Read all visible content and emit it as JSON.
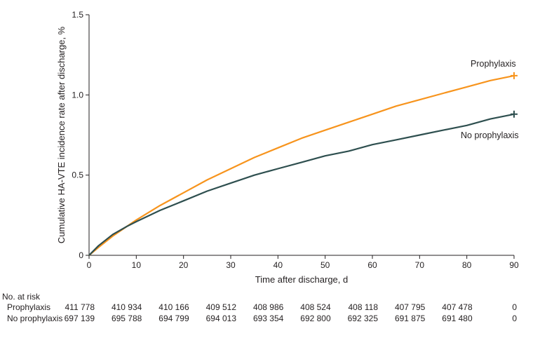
{
  "chart_data": {
    "type": "line",
    "title": "",
    "xlabel": "Time after discharge, d",
    "ylabel": "Cumulative HA-VTE incidence rate after discharge, %",
    "xlim": [
      0,
      90
    ],
    "ylim": [
      0,
      1.5
    ],
    "xticks": [
      0,
      10,
      20,
      30,
      40,
      50,
      60,
      70,
      80,
      90
    ],
    "yticks": [
      0,
      0.5,
      1.0,
      1.5
    ],
    "xtick_labels": [
      "0",
      "10",
      "20",
      "30",
      "40",
      "50",
      "60",
      "70",
      "80",
      "90"
    ],
    "ytick_labels": [
      "0",
      "0.5",
      "1.0",
      "1.5"
    ],
    "grid": false,
    "legend": "none (direct labels at line ends)",
    "series": [
      {
        "name": "Prophylaxis",
        "color": "#f7941d",
        "x": [
          0,
          2,
          5,
          8,
          10,
          15,
          20,
          25,
          30,
          35,
          40,
          45,
          50,
          55,
          60,
          65,
          70,
          75,
          80,
          85,
          90
        ],
        "y": [
          0,
          0.05,
          0.12,
          0.18,
          0.22,
          0.31,
          0.39,
          0.47,
          0.54,
          0.61,
          0.67,
          0.73,
          0.78,
          0.83,
          0.88,
          0.93,
          0.97,
          1.01,
          1.05,
          1.09,
          1.12
        ]
      },
      {
        "name": "No prophylaxis",
        "color": "#2e4f4f",
        "x": [
          0,
          2,
          5,
          8,
          10,
          15,
          20,
          25,
          30,
          35,
          40,
          45,
          50,
          55,
          60,
          65,
          70,
          75,
          80,
          85,
          90
        ],
        "y": [
          0,
          0.06,
          0.13,
          0.18,
          0.21,
          0.28,
          0.34,
          0.4,
          0.45,
          0.5,
          0.54,
          0.58,
          0.62,
          0.65,
          0.69,
          0.72,
          0.75,
          0.78,
          0.81,
          0.85,
          0.88
        ]
      }
    ]
  },
  "at_risk": {
    "header": "No. at risk",
    "rows": [
      {
        "label": "Prophylaxis",
        "values": [
          "411 778",
          "410 934",
          "410 166",
          "409 512",
          "408 986",
          "408 524",
          "408 118",
          "407 795",
          "407 478",
          "0"
        ]
      },
      {
        "label": "No prophylaxis",
        "values": [
          "697 139",
          "695 788",
          "694 799",
          "694 013",
          "693 354",
          "692 800",
          "692 325",
          "691 875",
          "691 480",
          "0"
        ]
      }
    ]
  }
}
